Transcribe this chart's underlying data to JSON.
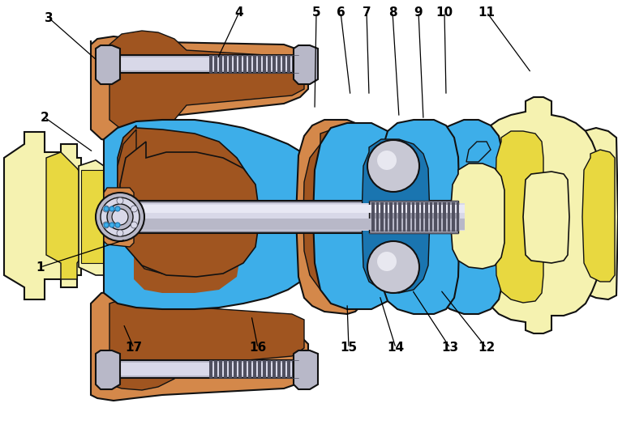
{
  "background_color": "#ffffff",
  "figsize": [
    7.62,
    5.35
  ],
  "dpi": 100,
  "colors": {
    "yellow": "#f0e87a",
    "yellow_light": "#f5f2b0",
    "yellow_mid": "#e8d840",
    "orange": "#d4884a",
    "orange_dark": "#a05520",
    "blue": "#3daee9",
    "blue_dark": "#1a75b0",
    "steel": "#9898a8",
    "steel_light": "#d8d8e8",
    "steel_dark": "#505060",
    "steel_mid": "#b8b8c8",
    "black": "#111111",
    "white": "#ffffff",
    "ball": "#c8c8d4",
    "ball_hi": "#e8e8f0"
  },
  "annotations": [
    [
      "3",
      60,
      22,
      120,
      75
    ],
    [
      "4",
      295,
      15,
      268,
      73
    ],
    [
      "2",
      55,
      145,
      115,
      188
    ],
    [
      "1",
      50,
      330,
      155,
      296
    ],
    [
      "5",
      390,
      15,
      388,
      135
    ],
    [
      "6",
      420,
      15,
      432,
      118
    ],
    [
      "7",
      452,
      15,
      455,
      118
    ],
    [
      "8",
      484,
      15,
      492,
      145
    ],
    [
      "9",
      516,
      15,
      522,
      148
    ],
    [
      "10",
      548,
      15,
      550,
      118
    ],
    [
      "11",
      600,
      15,
      655,
      90
    ],
    [
      "12",
      600,
      430,
      543,
      358
    ],
    [
      "13",
      555,
      430,
      508,
      358
    ],
    [
      "14",
      488,
      430,
      468,
      365
    ],
    [
      "15",
      430,
      430,
      428,
      375
    ],
    [
      "16",
      318,
      430,
      310,
      390
    ],
    [
      "17",
      165,
      430,
      152,
      400
    ]
  ]
}
